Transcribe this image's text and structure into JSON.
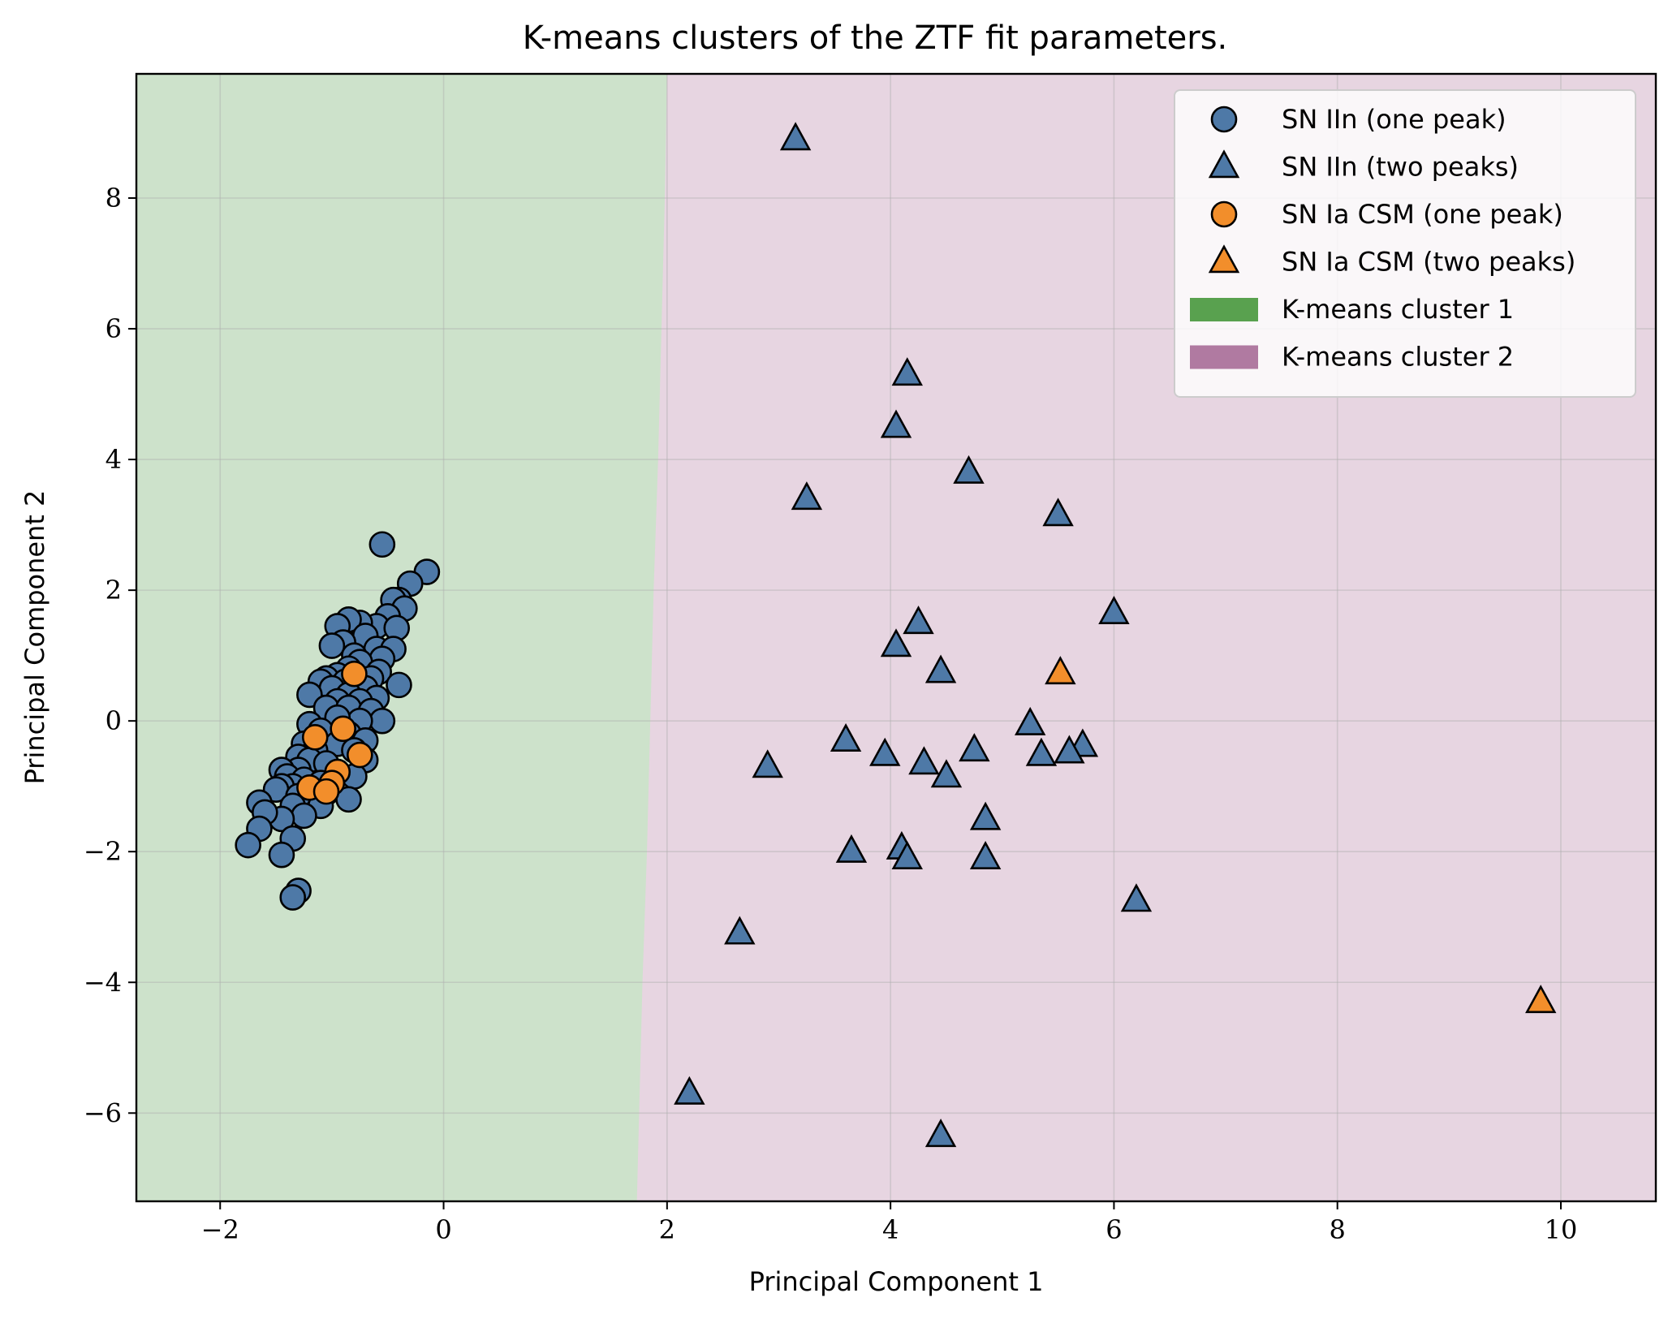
{
  "colors": {
    "cluster1_region": "#cde2cb",
    "cluster2_region": "#e7d5e1",
    "cluster1_patch": "#59a14f",
    "cluster2_patch": "#b07aa1",
    "sn_iin": "#4e79a7",
    "sn_ia_csm": "#f28e2b",
    "edge": "#000000"
  },
  "chart_data": {
    "type": "scatter",
    "title": "K-means clusters of the ZTF fit parameters.",
    "xlabel": "Principal Component 1",
    "ylabel": "Principal Component 2",
    "xlim": [
      -2.75,
      10.85
    ],
    "ylim": [
      -7.35,
      9.9
    ],
    "xticks": [
      -2,
      0,
      2,
      4,
      6,
      8,
      10
    ],
    "xtick_labels": [
      "−2",
      "0",
      "2",
      "4",
      "6",
      "8",
      "10"
    ],
    "yticks": [
      -6,
      -4,
      -2,
      0,
      2,
      4,
      6,
      8
    ],
    "ytick_labels": [
      "−6",
      "−4",
      "−2",
      "0",
      "2",
      "4",
      "6",
      "8"
    ],
    "grid": true,
    "legend_position": "top-right",
    "decision_boundary": [
      [
        2.0,
        9.9
      ],
      [
        1.98,
        8.0
      ],
      [
        1.95,
        6.0
      ],
      [
        1.92,
        4.0
      ],
      [
        1.88,
        2.0
      ],
      [
        1.85,
        0.0
      ],
      [
        1.82,
        -2.0
      ],
      [
        1.78,
        -4.0
      ],
      [
        1.75,
        -6.0
      ],
      [
        1.73,
        -7.35
      ]
    ],
    "regions": [
      {
        "name": "K-means cluster 1",
        "side": "left"
      },
      {
        "name": "K-means cluster 2",
        "side": "right"
      }
    ],
    "legend": [
      {
        "label": "SN IIn (one peak)",
        "marker": "circle",
        "color_key": "sn_iin"
      },
      {
        "label": "SN IIn (two peaks)",
        "marker": "triangle",
        "color_key": "sn_iin"
      },
      {
        "label": "SN Ia CSM (one peak)",
        "marker": "circle",
        "color_key": "sn_ia_csm"
      },
      {
        "label": "SN Ia CSM (two peaks)",
        "marker": "triangle",
        "color_key": "sn_ia_csm"
      },
      {
        "label": "K-means cluster 1",
        "marker": "patch",
        "color_key": "cluster1_patch"
      },
      {
        "label": "K-means cluster 2",
        "marker": "patch",
        "color_key": "cluster2_patch"
      }
    ],
    "series": [
      {
        "name": "SN IIn (one peak)",
        "marker": "circle",
        "color_key": "sn_iin",
        "points": [
          [
            -0.55,
            2.7
          ],
          [
            -0.15,
            2.28
          ],
          [
            -0.3,
            2.1
          ],
          [
            -0.4,
            1.85
          ],
          [
            -0.45,
            1.85
          ],
          [
            -0.35,
            1.72
          ],
          [
            -0.5,
            1.6
          ],
          [
            -0.6,
            1.45
          ],
          [
            -0.42,
            1.42
          ],
          [
            -0.75,
            1.5
          ],
          [
            -0.85,
            1.55
          ],
          [
            -0.95,
            1.45
          ],
          [
            -0.7,
            1.3
          ],
          [
            -0.9,
            1.2
          ],
          [
            -1.0,
            1.15
          ],
          [
            -0.6,
            1.1
          ],
          [
            -0.45,
            1.1
          ],
          [
            -0.8,
            1.0
          ],
          [
            -0.55,
            0.95
          ],
          [
            -0.75,
            0.9
          ],
          [
            -0.85,
            0.8
          ],
          [
            -0.95,
            0.7
          ],
          [
            -1.05,
            0.65
          ],
          [
            -1.1,
            0.6
          ],
          [
            -0.58,
            0.75
          ],
          [
            -0.65,
            0.65
          ],
          [
            -0.4,
            0.55
          ],
          [
            -0.88,
            0.6
          ],
          [
            -1.0,
            0.5
          ],
          [
            -0.7,
            0.5
          ],
          [
            -1.2,
            0.4
          ],
          [
            -0.85,
            0.4
          ],
          [
            -0.6,
            0.35
          ],
          [
            -0.75,
            0.3
          ],
          [
            -0.95,
            0.3
          ],
          [
            -1.05,
            0.2
          ],
          [
            -0.85,
            0.2
          ],
          [
            -0.65,
            0.15
          ],
          [
            -0.55,
            0.0
          ],
          [
            -0.75,
            0.0
          ],
          [
            -0.95,
            0.05
          ],
          [
            -1.2,
            -0.05
          ],
          [
            -1.1,
            -0.15
          ],
          [
            -0.85,
            -0.2
          ],
          [
            -0.7,
            -0.3
          ],
          [
            -0.95,
            -0.35
          ],
          [
            -1.25,
            -0.35
          ],
          [
            -1.15,
            -0.45
          ],
          [
            -0.8,
            -0.45
          ],
          [
            -0.7,
            -0.6
          ],
          [
            -1.3,
            -0.55
          ],
          [
            -1.2,
            -0.6
          ],
          [
            -1.05,
            -0.65
          ],
          [
            -1.3,
            -0.75
          ],
          [
            -1.45,
            -0.75
          ],
          [
            -1.4,
            -0.85
          ],
          [
            -1.25,
            -0.9
          ],
          [
            -1.1,
            -0.95
          ],
          [
            -1.35,
            -1.0
          ],
          [
            -1.45,
            -1.0
          ],
          [
            -1.5,
            -1.05
          ],
          [
            -1.3,
            -1.15
          ],
          [
            -1.05,
            -1.1
          ],
          [
            -0.8,
            -0.85
          ],
          [
            -0.85,
            -1.2
          ],
          [
            -1.1,
            -1.3
          ],
          [
            -1.35,
            -1.3
          ],
          [
            -1.25,
            -1.45
          ],
          [
            -1.45,
            -1.5
          ],
          [
            -1.65,
            -1.25
          ],
          [
            -1.6,
            -1.4
          ],
          [
            -1.65,
            -1.65
          ],
          [
            -1.35,
            -1.8
          ],
          [
            -1.75,
            -1.9
          ],
          [
            -1.45,
            -2.05
          ],
          [
            -1.3,
            -2.6
          ],
          [
            -1.35,
            -2.7
          ]
        ]
      },
      {
        "name": "SN Ia CSM (one peak)",
        "marker": "circle",
        "color_key": "sn_ia_csm",
        "points": [
          [
            -0.8,
            0.72
          ],
          [
            -1.15,
            -0.25
          ],
          [
            -0.9,
            -0.12
          ],
          [
            -0.75,
            -0.52
          ],
          [
            -0.95,
            -0.78
          ],
          [
            -1.0,
            -0.95
          ],
          [
            -1.2,
            -1.02
          ],
          [
            -1.05,
            -1.08
          ]
        ]
      },
      {
        "name": "SN IIn (two peaks)",
        "marker": "triangle",
        "color_key": "sn_iin",
        "points": [
          [
            3.15,
            8.9
          ],
          [
            4.15,
            5.3
          ],
          [
            4.05,
            4.5
          ],
          [
            4.7,
            3.8
          ],
          [
            3.25,
            3.4
          ],
          [
            5.5,
            3.15
          ],
          [
            6.0,
            1.65
          ],
          [
            4.25,
            1.5
          ],
          [
            4.05,
            1.15
          ],
          [
            4.45,
            0.75
          ],
          [
            5.25,
            -0.05
          ],
          [
            3.6,
            -0.3
          ],
          [
            5.72,
            -0.38
          ],
          [
            5.6,
            -0.48
          ],
          [
            4.75,
            -0.45
          ],
          [
            5.35,
            -0.52
          ],
          [
            3.95,
            -0.52
          ],
          [
            4.3,
            -0.65
          ],
          [
            2.9,
            -0.7
          ],
          [
            4.5,
            -0.85
          ],
          [
            4.85,
            -1.5
          ],
          [
            4.1,
            -1.95
          ],
          [
            3.65,
            -2.0
          ],
          [
            4.15,
            -2.1
          ],
          [
            4.85,
            -2.1
          ],
          [
            6.2,
            -2.75
          ],
          [
            2.65,
            -3.25
          ],
          [
            2.2,
            -5.7
          ],
          [
            4.45,
            -6.35
          ]
        ]
      },
      {
        "name": "SN Ia CSM (two peaks)",
        "marker": "triangle",
        "color_key": "sn_ia_csm",
        "points": [
          [
            5.52,
            0.73
          ],
          [
            9.82,
            -4.3
          ]
        ]
      }
    ]
  }
}
